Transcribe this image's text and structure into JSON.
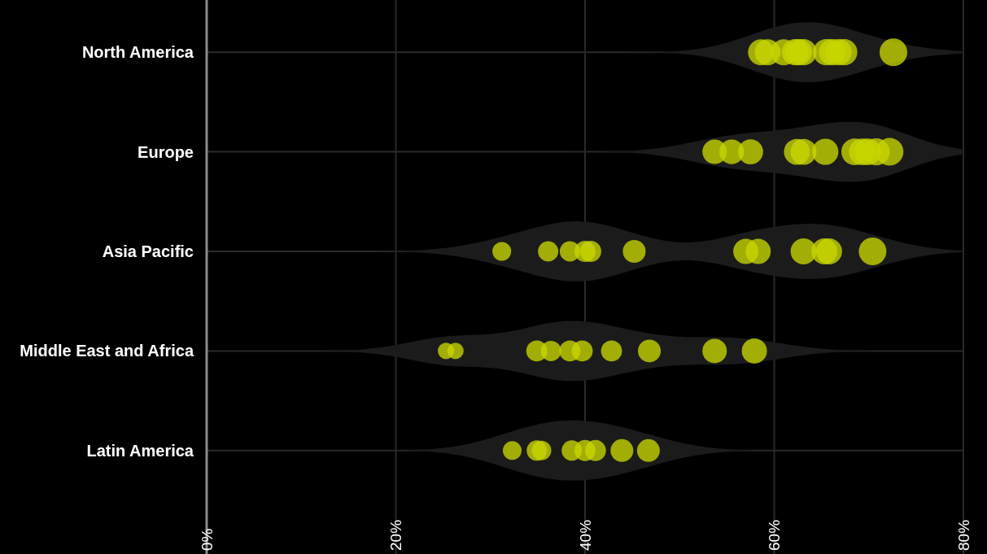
{
  "chart_data": {
    "type": "bubble",
    "orientation": "horizontal",
    "categories": [
      "North America",
      "Europe",
      "Asia Pacific",
      "Middle East and Africa",
      "Latin America"
    ],
    "xlim": [
      0,
      80
    ],
    "xticks": [
      {
        "value": 0,
        "label": "0%"
      },
      {
        "value": 20,
        "label": "20%"
      },
      {
        "value": 40,
        "label": "40%"
      },
      {
        "value": 60,
        "label": "60%"
      },
      {
        "value": 80,
        "label": "80%"
      }
    ],
    "grid": true,
    "relative": false,
    "series": [
      {
        "color": "#c8d600",
        "x": [
          "North America",
          "North America",
          "North America",
          "North America",
          "North America",
          "North America",
          "North America",
          "North America",
          "North America",
          "North America",
          "North America",
          "Europe",
          "Europe",
          "Europe",
          "Europe",
          "Europe",
          "Europe",
          "Europe",
          "Europe",
          "Europe",
          "Europe",
          "Europe",
          "Asia Pacific",
          "Asia Pacific",
          "Asia Pacific",
          "Asia Pacific",
          "Asia Pacific",
          "Asia Pacific",
          "Asia Pacific",
          "Asia Pacific",
          "Asia Pacific",
          "Asia Pacific",
          "Asia Pacific",
          "Asia Pacific",
          "Middle East and Africa",
          "Middle East and Africa",
          "Middle East and Africa",
          "Middle East and Africa",
          "Middle East and Africa",
          "Middle East and Africa",
          "Middle East and Africa",
          "Middle East and Africa",
          "Middle East and Africa",
          "Middle East and Africa",
          "Latin America",
          "Latin America",
          "Latin America",
          "Latin America",
          "Latin America",
          "Latin America",
          "Latin America",
          "Latin America"
        ],
        "values": [
          58.6,
          59.3,
          61.0,
          62.2,
          62.6,
          63.1,
          65.5,
          66.1,
          66.8,
          67.4,
          72.6,
          53.7,
          55.5,
          57.5,
          62.4,
          63.1,
          65.4,
          68.5,
          69.3,
          69.9,
          70.8,
          72.2,
          31.2,
          36.1,
          38.4,
          40.0,
          40.6,
          45.2,
          57.0,
          58.3,
          63.1,
          65.3,
          65.8,
          70.4,
          25.3,
          26.3,
          34.9,
          36.4,
          38.4,
          39.7,
          42.8,
          46.8,
          53.7,
          57.9,
          32.3,
          34.9,
          35.4,
          38.6,
          40.0,
          41.1,
          43.9,
          46.7
        ],
        "sizes": [
          0.88,
          0.88,
          0.88,
          0.9,
          0.9,
          0.9,
          0.9,
          0.9,
          0.9,
          0.9,
          1,
          0.78,
          0.8,
          0.82,
          0.88,
          0.88,
          0.9,
          0.92,
          0.92,
          0.92,
          0.95,
          1,
          0.46,
          0.54,
          0.54,
          0.58,
          0.58,
          0.68,
          0.83,
          0.83,
          0.88,
          0.88,
          0.88,
          1,
          0.35,
          0.35,
          0.58,
          0.54,
          0.58,
          0.58,
          0.58,
          0.68,
          0.78,
          0.83,
          0.46,
          0.54,
          0.5,
          0.54,
          0.58,
          0.58,
          0.68,
          0.68
        ]
      }
    ]
  }
}
